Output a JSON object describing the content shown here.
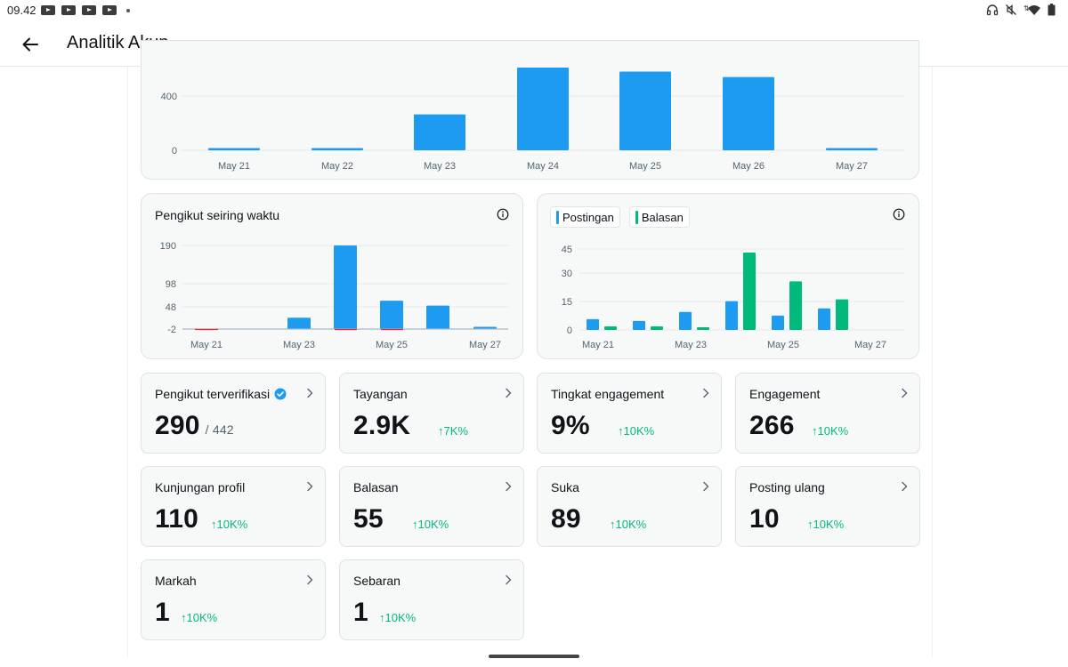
{
  "status_bar": {
    "time": "09.42"
  },
  "header": {
    "title": "Analitik Akun"
  },
  "top_chart": {
    "y_ticks": [
      "400",
      "0"
    ],
    "x_labels": [
      "May 21",
      "May 22",
      "May 23",
      "May 24",
      "May 25",
      "May 26",
      "May 27"
    ]
  },
  "followers_chart": {
    "title": "Pengikut seiring waktu",
    "y_ticks": [
      "190",
      "98",
      "48",
      "-2"
    ],
    "x_labels": [
      "May 21",
      "May 23",
      "May 25",
      "May 27"
    ]
  },
  "activity_chart": {
    "legend": [
      "Postingan",
      "Balasan"
    ],
    "y_ticks": [
      "45",
      "30",
      "15",
      "0"
    ],
    "x_labels": [
      "May 21",
      "May 23",
      "May 25",
      "May 27"
    ]
  },
  "chart_data": [
    {
      "type": "bar",
      "categories": [
        "May 21",
        "May 22",
        "May 23",
        "May 24",
        "May 25",
        "May 26",
        "May 27"
      ],
      "values": [
        8,
        4,
        265,
        620,
        580,
        540,
        4
      ],
      "ylim": [
        0,
        620
      ],
      "note_cropped_top": true
    },
    {
      "type": "bar",
      "title": "Pengikut seiring waktu",
      "categories": [
        "May 21",
        "May 22",
        "May 23",
        "May 24",
        "May 25",
        "May 26",
        "May 27"
      ],
      "values": [
        0,
        0,
        24,
        190,
        63,
        52,
        3
      ],
      "ylim": [
        -2,
        190
      ]
    },
    {
      "type": "bar",
      "categories": [
        "May 21",
        "May 22",
        "May 23",
        "May 24",
        "May 25",
        "May 26",
        "May 27"
      ],
      "series": [
        {
          "name": "Postingan",
          "values": [
            6,
            5,
            10,
            16,
            8,
            12,
            0
          ]
        },
        {
          "name": "Balasan",
          "values": [
            2,
            2,
            1,
            43,
            27,
            17,
            0
          ]
        }
      ],
      "ylim": [
        0,
        45
      ]
    }
  ],
  "metrics": [
    {
      "label": "Pengikut terverifikasi",
      "value": "290",
      "sub": "/ 442",
      "delta": "",
      "verified": true
    },
    {
      "label": "Tayangan",
      "value": "2.9K",
      "sub": "",
      "delta": "↑7K%"
    },
    {
      "label": "Tingkat engagement",
      "value": "9%",
      "sub": "",
      "delta": "↑10K%"
    },
    {
      "label": "Engagement",
      "value": "266",
      "sub": "",
      "delta": "↑10K%"
    },
    {
      "label": "Kunjungan profil",
      "value": "110",
      "sub": "",
      "delta": "↑10K%"
    },
    {
      "label": "Balasan",
      "value": "55",
      "sub": "",
      "delta": "↑10K%"
    },
    {
      "label": "Suka",
      "value": "89",
      "sub": "",
      "delta": "↑10K%"
    },
    {
      "label": "Posting ulang",
      "value": "10",
      "sub": "",
      "delta": "↑10K%"
    },
    {
      "label": "Markah",
      "value": "1",
      "sub": "",
      "delta": "↑10K%"
    },
    {
      "label": "Sebaran",
      "value": "1",
      "sub": "",
      "delta": "↑10K%"
    }
  ],
  "colors": {
    "blue": "#1d9bf0",
    "green": "#00ba7c",
    "red": "#f4212e"
  }
}
